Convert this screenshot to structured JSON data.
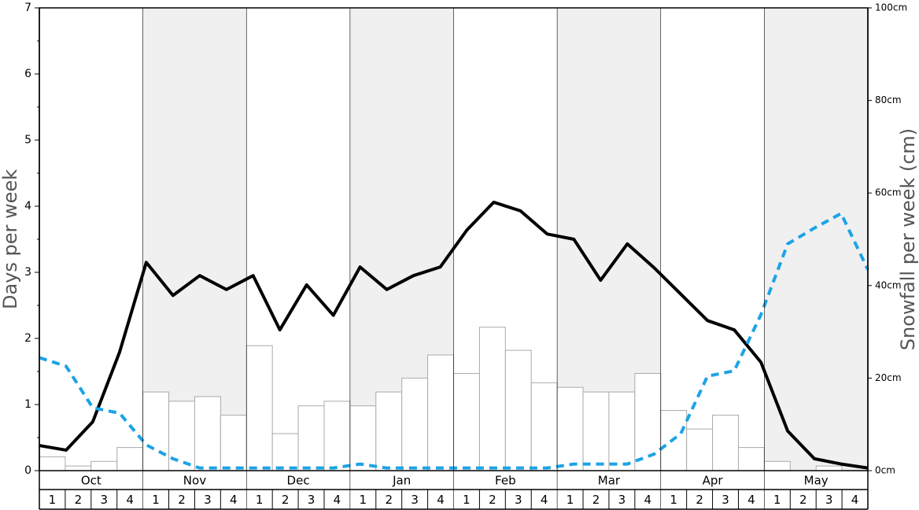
{
  "chart_data": {
    "type": "combo",
    "ylabel": "Days per week",
    "y2label": "Snowfall per week (cm)",
    "months": [
      "Oct",
      "Nov",
      "Dec",
      "Jan",
      "Feb",
      "Mar",
      "Apr",
      "May"
    ],
    "categories": [
      "1",
      "2",
      "3",
      "4",
      "1",
      "2",
      "3",
      "4",
      "1",
      "2",
      "3",
      "4",
      "1",
      "2",
      "3",
      "4",
      "1",
      "2",
      "3",
      "4",
      "1",
      "2",
      "3",
      "4",
      "1",
      "2",
      "3",
      "4",
      "1",
      "2",
      "3",
      "4"
    ],
    "ylim": [
      0,
      7
    ],
    "yticks": [
      0,
      1,
      2,
      3,
      4,
      5,
      6,
      7
    ],
    "yminorticks": [
      0.5,
      1.5,
      2.5,
      3.5,
      4.5,
      5.5,
      6.5
    ],
    "y2lim": [
      0,
      100
    ],
    "y2ticks": [
      {
        "value": 0,
        "label": "0cm"
      },
      {
        "value": 20,
        "label": "20cm"
      },
      {
        "value": 40,
        "label": "40cm"
      },
      {
        "value": 60,
        "label": "60cm"
      },
      {
        "value": 80,
        "label": "80cm"
      },
      {
        "value": 100,
        "label": "100cm"
      }
    ],
    "shade_color": "#f0f0f0",
    "series": [
      {
        "type": "bar",
        "axis": "y2",
        "color": "#ffffff",
        "edgecolor": "#aaaaaa",
        "values": [
          3,
          1,
          2,
          5,
          17,
          15,
          16,
          12,
          27,
          8,
          14,
          15,
          14,
          17,
          20,
          25,
          21,
          31,
          26,
          19,
          18,
          17,
          17,
          21,
          13,
          9,
          12,
          5,
          2,
          0,
          1,
          0
        ]
      },
      {
        "type": "line",
        "color": "#000000",
        "linestyle": "solid",
        "values": [
          0.38,
          0.31,
          0.74,
          1.79,
          3.15,
          2.65,
          2.95,
          2.74,
          2.95,
          2.13,
          2.81,
          2.35,
          3.08,
          2.74,
          2.95,
          3.08,
          3.64,
          4.06,
          3.93,
          3.58,
          3.5,
          2.88,
          3.43,
          3.07,
          2.67,
          2.27,
          2.13,
          1.64,
          0.6,
          0.18,
          0.1,
          0.04
        ]
      },
      {
        "type": "line",
        "color": "#1ca3e6",
        "linestyle": "dashed",
        "values": [
          1.71,
          1.58,
          0.95,
          0.87,
          0.39,
          0.18,
          0.04,
          0.04,
          0.04,
          0.04,
          0.04,
          0.04,
          0.1,
          0.04,
          0.04,
          0.04,
          0.04,
          0.04,
          0.04,
          0.04,
          0.1,
          0.1,
          0.1,
          0.25,
          0.56,
          1.43,
          1.51,
          2.36,
          3.43,
          3.67,
          3.89,
          3.04
        ]
      }
    ]
  }
}
